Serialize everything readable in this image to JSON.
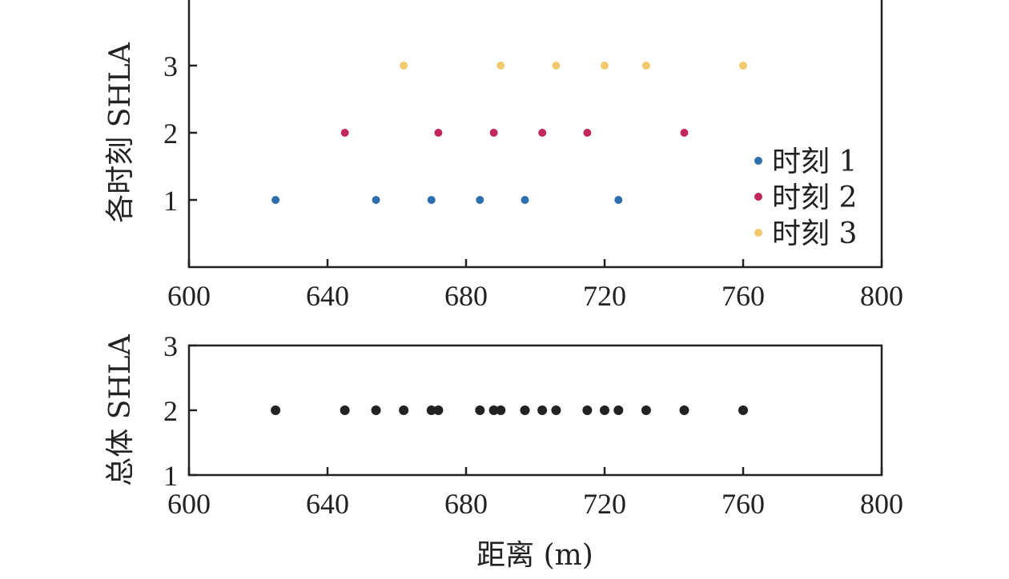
{
  "chart_data": [
    {
      "type": "scatter",
      "ylabel": "各时刻 SHLA",
      "xlabel": "",
      "xlim": [
        600,
        800
      ],
      "ylim": [
        0,
        4
      ],
      "xticks": [
        "600",
        "640",
        "680",
        "720",
        "760",
        "800"
      ],
      "yticks": [
        "1",
        "2",
        "3"
      ],
      "legend_position": "bottom-right",
      "grid": false,
      "series": [
        {
          "name": "时刻 1",
          "color": "#2e6fae",
          "y": 1,
          "x": [
            625,
            654,
            670,
            684,
            697,
            724
          ]
        },
        {
          "name": "时刻 2",
          "color": "#c2275a",
          "y": 2,
          "x": [
            645,
            672,
            688,
            702,
            715,
            743
          ]
        },
        {
          "name": "时刻 3",
          "color": "#f2c96d",
          "y": 3,
          "x": [
            662,
            690,
            706,
            720,
            732,
            760
          ]
        }
      ]
    },
    {
      "type": "scatter",
      "ylabel": "总体 SHLA",
      "xlabel": "距离 (m)",
      "xlim": [
        600,
        800
      ],
      "ylim": [
        1,
        3
      ],
      "xticks": [
        "600",
        "640",
        "680",
        "720",
        "760",
        "800"
      ],
      "yticks": [
        "1",
        "2",
        "3"
      ],
      "grid": false,
      "series": [
        {
          "color": "#222222",
          "y": 2,
          "x": [
            625,
            645,
            654,
            662,
            670,
            672,
            684,
            688,
            690,
            697,
            702,
            706,
            715,
            720,
            724,
            732,
            743,
            760
          ]
        }
      ]
    }
  ]
}
